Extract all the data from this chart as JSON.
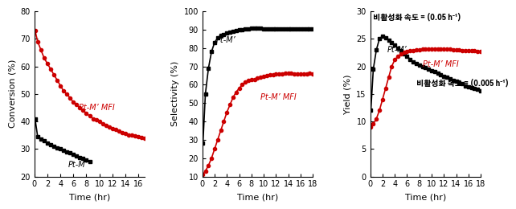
{
  "conv_black_x": [
    0.1,
    0.5,
    1.0,
    1.5,
    2.0,
    2.5,
    3.0,
    3.5,
    4.0,
    4.5,
    5.0,
    5.5,
    6.0,
    6.5,
    7.0,
    7.5,
    8.0,
    8.5
  ],
  "conv_black_y": [
    41,
    34.5,
    33.5,
    33,
    32,
    31.5,
    31,
    30.5,
    30,
    29.5,
    29,
    28.5,
    28,
    27.5,
    27,
    26.5,
    26,
    25.5
  ],
  "conv_red_x": [
    0.1,
    0.5,
    1.0,
    1.5,
    2.0,
    2.5,
    3.0,
    3.5,
    4.0,
    4.5,
    5.0,
    5.5,
    6.0,
    6.5,
    7.0,
    7.5,
    8.0,
    8.5,
    9.0,
    9.5,
    10.0,
    10.5,
    11.0,
    11.5,
    12.0,
    12.5,
    13.0,
    13.5,
    14.0,
    14.5,
    15.0,
    15.5,
    16.0,
    16.5,
    17.0
  ],
  "conv_red_y": [
    73,
    69,
    66,
    63,
    61,
    59,
    57,
    55,
    53,
    51,
    50,
    48.5,
    47,
    46,
    45,
    44,
    43,
    42,
    41,
    40.5,
    40,
    39,
    38.5,
    38,
    37.5,
    37,
    36.5,
    36,
    35.5,
    35.2,
    35,
    34.7,
    34.5,
    34.2,
    34.0
  ],
  "conv_ylabel": "Conversion (%)",
  "conv_ylim": [
    20,
    80
  ],
  "conv_yticks": [
    20,
    30,
    40,
    50,
    60,
    70,
    80
  ],
  "conv_label_black": "Pt-M’",
  "conv_label_red": "Pt-M’ MFI",
  "conv_xlabel": "Time (hr)",
  "conv_xticks": [
    0,
    2,
    4,
    6,
    8,
    10,
    12,
    14,
    16
  ],
  "conv_xlim": 17,
  "sel_black_x": [
    0.1,
    0.5,
    1.0,
    1.5,
    2.0,
    2.5,
    3.0,
    3.5,
    4.0,
    4.5,
    5.0,
    5.5,
    6.0,
    6.5,
    7.0,
    7.5,
    8.0,
    8.5,
    9.0,
    9.5,
    10.0,
    10.5,
    11.0,
    11.5,
    12.0,
    12.5,
    13.0,
    13.5,
    14.0,
    14.5,
    15.0,
    15.5,
    16.0,
    16.5,
    17.0,
    17.5,
    18.0
  ],
  "sel_black_y": [
    28,
    55,
    69,
    78,
    83,
    85.5,
    87,
    87.5,
    88,
    88.5,
    89,
    89.5,
    90,
    90,
    90.5,
    90.5,
    90.8,
    91,
    91,
    90.8,
    90.5,
    90.5,
    90.5,
    90.5,
    90.5,
    90.5,
    90.5,
    90.5,
    90.5,
    90.5,
    90.5,
    90.5,
    90.5,
    90.5,
    90.5,
    90.5,
    90.5
  ],
  "sel_red_x": [
    0.1,
    0.5,
    1.0,
    1.5,
    2.0,
    2.5,
    3.0,
    3.5,
    4.0,
    4.5,
    5.0,
    5.5,
    6.0,
    6.5,
    7.0,
    7.5,
    8.0,
    8.5,
    9.0,
    9.5,
    10.0,
    10.5,
    11.0,
    11.5,
    12.0,
    12.5,
    13.0,
    13.5,
    14.0,
    14.5,
    15.0,
    15.5,
    16.0,
    16.5,
    17.0,
    17.5,
    18.0
  ],
  "sel_red_y": [
    11,
    13,
    16,
    20,
    25,
    30,
    35,
    40,
    45,
    49,
    53,
    56,
    58,
    60,
    61.5,
    62.5,
    63,
    63,
    63.5,
    64,
    64.5,
    65,
    65.2,
    65.5,
    65.8,
    66,
    66,
    66.2,
    66.3,
    66.2,
    66,
    66,
    65.8,
    66,
    66,
    66.2,
    66.0
  ],
  "sel_ylabel": "Selectivity (%)",
  "sel_ylim": [
    10,
    100
  ],
  "sel_yticks": [
    10,
    20,
    30,
    40,
    50,
    60,
    70,
    80,
    90,
    100
  ],
  "sel_label_black": "Pt-M’",
  "sel_label_red": "Pt-M’ MFI",
  "sel_xlabel": "Time (hr)",
  "sel_xticks": [
    0,
    2,
    4,
    6,
    8,
    10,
    12,
    14,
    16,
    18
  ],
  "yld_black_x": [
    0.1,
    0.5,
    1.0,
    1.5,
    2.0,
    2.5,
    3.0,
    3.5,
    4.0,
    4.5,
    5.0,
    5.5,
    6.0,
    6.5,
    7.0,
    7.5,
    8.0,
    8.5,
    9.0,
    9.5,
    10.0,
    10.5,
    11.0,
    11.5,
    12.0,
    12.5,
    13.0,
    13.5,
    14.0,
    14.5,
    15.0,
    15.5,
    16.0,
    16.5,
    17.0,
    17.5,
    18.0
  ],
  "yld_black_y": [
    12,
    19.5,
    23,
    25,
    25.5,
    25.2,
    24.8,
    24.3,
    23.8,
    23.3,
    22.8,
    22.3,
    21.8,
    21.3,
    20.8,
    20.5,
    20.2,
    20.0,
    19.8,
    19.5,
    19.2,
    19.0,
    18.7,
    18.5,
    18.2,
    18.0,
    17.8,
    17.5,
    17.3,
    17.0,
    16.8,
    16.5,
    16.3,
    16.1,
    16.0,
    15.8,
    15.6
  ],
  "yld_red_x": [
    0.1,
    0.5,
    1.0,
    1.5,
    2.0,
    2.5,
    3.0,
    3.5,
    4.0,
    4.5,
    5.0,
    5.5,
    6.0,
    6.5,
    7.0,
    7.5,
    8.0,
    8.5,
    9.0,
    9.5,
    10.0,
    10.5,
    11.0,
    11.5,
    12.0,
    12.5,
    13.0,
    13.5,
    14.0,
    14.5,
    15.0,
    15.5,
    16.0,
    16.5,
    17.0,
    17.5,
    18.0
  ],
  "yld_red_y": [
    9,
    9.5,
    10.5,
    12,
    14,
    16,
    18,
    20,
    21.2,
    21.8,
    22.2,
    22.5,
    22.7,
    22.8,
    22.9,
    23.0,
    23.0,
    23.1,
    23.1,
    23.2,
    23.2,
    23.2,
    23.2,
    23.2,
    23.2,
    23.1,
    23.1,
    23.0,
    23.0,
    23.0,
    22.9,
    22.9,
    22.9,
    22.8,
    22.8,
    22.7,
    22.7
  ],
  "yld_ylabel": "Yield (%)",
  "yld_ylim": [
    0,
    30
  ],
  "yld_yticks": [
    0,
    5,
    10,
    15,
    20,
    25,
    30
  ],
  "yld_label_black": "Pt-M’",
  "yld_label_red": "Pt-M’ MFI",
  "yld_xlabel": "Time (hr)",
  "yld_xticks": [
    0,
    2,
    4,
    6,
    8,
    10,
    12,
    14,
    16,
    18
  ],
  "yld_annot1": "비활성화 속도 = (0.05 h⁻¹)",
  "yld_annot2": "비활성화 속도 = (0.005 h⁻¹)",
  "color_black": "#000000",
  "color_red": "#cc0000",
  "marker_black": "s",
  "marker_red": "o",
  "markersize": 3.0,
  "linewidth": 1.2,
  "tick_fontsize": 7,
  "label_fontsize": 8,
  "annot_fontsize": 7,
  "annot_fontsize_small": 6.5
}
